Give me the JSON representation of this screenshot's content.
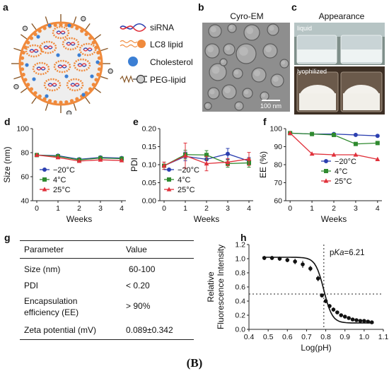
{
  "panels": {
    "a": {
      "label": "a",
      "legend": [
        {
          "icon": "sirna-icon",
          "text": "siRNA"
        },
        {
          "icon": "lc8-lipid-icon",
          "text": "LC8 lipid",
          "color": "#f08a3c"
        },
        {
          "icon": "cholesterol-icon",
          "text": "Cholesterol",
          "color": "#3b7fd4"
        },
        {
          "icon": "peg-lipid-icon",
          "text": "PEG-lipid"
        }
      ]
    },
    "b": {
      "label": "b",
      "title": "Cyro-EM",
      "scalebar": "100 nm"
    },
    "c": {
      "label": "c",
      "title": "Appearance",
      "top_label": "liquid",
      "bottom_label": "lyophilized"
    },
    "d": {
      "label": "d"
    },
    "e": {
      "label": "e"
    },
    "f": {
      "label": "f"
    },
    "g": {
      "label": "g"
    },
    "h": {
      "label": "h"
    }
  },
  "colors": {
    "series_neg20": "#2b3fb0",
    "series_4": "#2f8a2f",
    "series_25": "#e0303a",
    "accent_orange": "#f08a3c",
    "accent_blue": "#3b7fd4"
  },
  "chart_data": [
    {
      "id": "d",
      "type": "line",
      "x": [
        0,
        1,
        2,
        3,
        4
      ],
      "xlabel": "Weeks",
      "ylabel": "Size (nm)",
      "ylim": [
        40,
        100
      ],
      "yticks": [
        40,
        60,
        80,
        100
      ],
      "xticks": [
        0,
        1,
        2,
        3,
        4
      ],
      "legend_position": "left-middle",
      "series": [
        {
          "name": "−20°C",
          "values": [
            78,
            77.5,
            74.5,
            76,
            75.5
          ],
          "marker": "circle",
          "color": "#2b3fb0"
        },
        {
          "name": "4°C",
          "values": [
            78,
            77,
            74,
            75.5,
            75
          ],
          "marker": "square",
          "color": "#2f8a2f"
        },
        {
          "name": "25°C",
          "values": [
            78,
            76,
            73,
            74,
            73.5
          ],
          "marker": "triangle",
          "color": "#e0303a"
        }
      ]
    },
    {
      "id": "e",
      "type": "line",
      "x": [
        0,
        1,
        2,
        3,
        4
      ],
      "xlabel": "Weeks",
      "ylabel": "PDI",
      "ylim": [
        0.0,
        0.2
      ],
      "yticks": [
        0.0,
        0.05,
        0.1,
        0.15,
        0.2
      ],
      "xticks": [
        0,
        1,
        2,
        3,
        4
      ],
      "legend_position": "left-middle",
      "series": [
        {
          "name": "−20°C",
          "values": [
            0.097,
            0.123,
            0.115,
            0.13,
            0.11
          ],
          "errors": [
            0.01,
            0.012,
            0.012,
            0.015,
            0.01
          ],
          "marker": "circle",
          "color": "#2b3fb0"
        },
        {
          "name": "4°C",
          "values": [
            0.097,
            0.128,
            0.127,
            0.103,
            0.105
          ],
          "errors": [
            0.01,
            0.012,
            0.012,
            0.01,
            0.012
          ],
          "marker": "square",
          "color": "#2f8a2f"
        },
        {
          "name": "25°C",
          "values": [
            0.097,
            0.125,
            0.103,
            0.107,
            0.116
          ],
          "errors": [
            0.01,
            0.035,
            0.02,
            0.01,
            0.018
          ],
          "marker": "triangle",
          "color": "#e0303a"
        }
      ]
    },
    {
      "id": "f",
      "type": "line",
      "x": [
        0,
        1,
        2,
        3,
        4
      ],
      "xlabel": "Weeks",
      "ylabel": "EE (%)",
      "ylim": [
        60,
        100
      ],
      "yticks": [
        60,
        70,
        80,
        90,
        100
      ],
      "xticks": [
        0,
        1,
        2,
        3,
        4
      ],
      "legend_position": "center-right",
      "series": [
        {
          "name": "−20°C",
          "values": [
            97.5,
            97,
            97,
            96.5,
            96
          ],
          "marker": "circle",
          "color": "#2b3fb0"
        },
        {
          "name": "4°C",
          "values": [
            97.5,
            97,
            96.5,
            91.5,
            92
          ],
          "marker": "square",
          "color": "#2f8a2f"
        },
        {
          "name": "25°C",
          "values": [
            97.5,
            86,
            85.5,
            85.5,
            83
          ],
          "marker": "triangle",
          "color": "#e0303a"
        }
      ]
    },
    {
      "id": "g",
      "type": "table",
      "headers": [
        "Parameter",
        "Value"
      ],
      "rows": [
        [
          "Size (nm)",
          "60-100"
        ],
        [
          "PDI",
          "< 0.20"
        ],
        [
          "Encapsulation\nefficiency (EE)",
          "> 90%"
        ],
        [
          "Zeta potential (mV)",
          "0.089±0.342"
        ]
      ]
    },
    {
      "id": "h",
      "type": "scatter",
      "xlabel": "Log(pH)",
      "ylabel": "Relative\nFluorescence Intensity",
      "xlim": [
        0.4,
        1.1
      ],
      "ylim": [
        0.0,
        1.2
      ],
      "xticks": [
        0.4,
        0.5,
        0.6,
        0.7,
        0.8,
        0.9,
        1.0,
        1.1
      ],
      "yticks": [
        0.0,
        0.2,
        0.4,
        0.6,
        0.8,
        1.0,
        1.2
      ],
      "annotation": "pKa=6.21",
      "ref_lines": {
        "x": 0.79,
        "y": 0.5
      },
      "points": [
        {
          "x": 0.48,
          "y": 1.01,
          "err": 0.03
        },
        {
          "x": 0.52,
          "y": 1.01,
          "err": 0.03
        },
        {
          "x": 0.56,
          "y": 1.0,
          "err": 0.03
        },
        {
          "x": 0.6,
          "y": 0.98,
          "err": 0.03
        },
        {
          "x": 0.64,
          "y": 0.96,
          "err": 0.04
        },
        {
          "x": 0.68,
          "y": 0.92,
          "err": 0.05
        },
        {
          "x": 0.72,
          "y": 0.86,
          "err": 0.04
        },
        {
          "x": 0.76,
          "y": 0.72,
          "err": 0.04
        },
        {
          "x": 0.78,
          "y": 0.48,
          "err": 0.03
        },
        {
          "x": 0.8,
          "y": 0.4,
          "err": 0.03
        },
        {
          "x": 0.82,
          "y": 0.33,
          "err": 0.03
        },
        {
          "x": 0.84,
          "y": 0.28,
          "err": 0.03
        },
        {
          "x": 0.86,
          "y": 0.24,
          "err": 0.02
        },
        {
          "x": 0.88,
          "y": 0.2,
          "err": 0.02
        },
        {
          "x": 0.9,
          "y": 0.18,
          "err": 0.02
        },
        {
          "x": 0.92,
          "y": 0.16,
          "err": 0.02
        },
        {
          "x": 0.94,
          "y": 0.14,
          "err": 0.02
        },
        {
          "x": 0.96,
          "y": 0.13,
          "err": 0.02
        },
        {
          "x": 0.98,
          "y": 0.12,
          "err": 0.02
        },
        {
          "x": 1.0,
          "y": 0.12,
          "err": 0.02
        },
        {
          "x": 1.02,
          "y": 0.11,
          "err": 0.02
        },
        {
          "x": 1.04,
          "y": 0.1,
          "err": 0.02
        }
      ]
    }
  ],
  "caption": "(B)"
}
